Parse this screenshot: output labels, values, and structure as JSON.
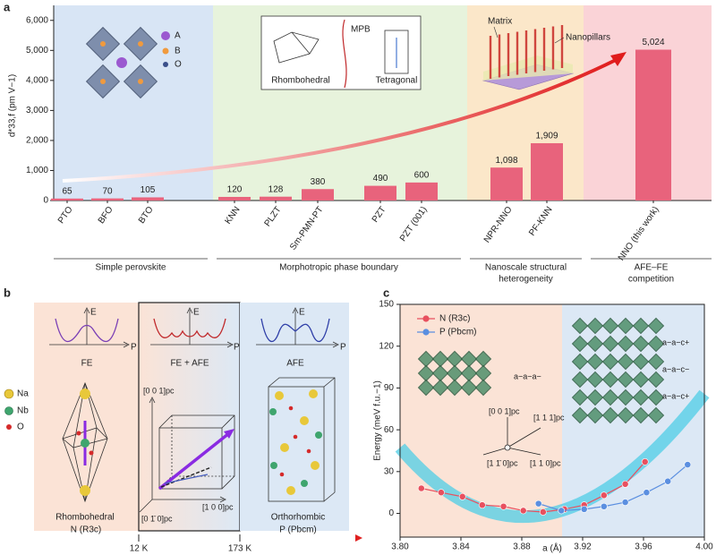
{
  "panel_labels": [
    "a",
    "b",
    "c"
  ],
  "chart_data": [
    {
      "type": "bar",
      "y_label": "d*33,f (pm V−1)",
      "categories": [
        "PTO",
        "BFO",
        "BTO",
        "KNN",
        "PLZT",
        "Sm-PMN-PT",
        "PZT",
        "PZT (001)",
        "NPR-NNO",
        "PF-KNN",
        "NNO (this work)"
      ],
      "values": [
        65,
        70,
        105,
        120,
        128,
        380,
        490,
        600,
        1098,
        1909,
        5024
      ],
      "value_labels": [
        "65",
        "70",
        "105",
        "120",
        "128",
        "380",
        "490",
        "600",
        "1,098",
        "1,909",
        "5,024"
      ],
      "color": "#e8637c",
      "ylim": [
        0,
        6500
      ],
      "yticks": [
        0,
        {
          "value": 1000,
          "label": "1,000"
        },
        {
          "value": 2000,
          "label": "2,000"
        },
        {
          "value": 3000,
          "label": "3,000"
        },
        {
          "value": 4000,
          "label": "4,000"
        },
        {
          "value": 5000,
          "label": "5,000"
        },
        {
          "value": 6000,
          "label": "6,000"
        }
      ],
      "groups": [
        {
          "label": [
            "Simple perovskite"
          ],
          "color": "#d8e5f5"
        },
        {
          "label": [
            "Morphotropic phase boundary"
          ],
          "color": "#e7f3dc"
        },
        {
          "label": [
            "Nanoscale structural",
            "heterogeneity"
          ],
          "color": "#fbe7c9"
        },
        {
          "label": [
            "AFE–FE",
            "competition"
          ],
          "color": "#fad3d7"
        }
      ],
      "annotations": [
        "A",
        "B",
        "O",
        "MPB",
        "Rhombohedral",
        "Tetragonal",
        "Matrix",
        "Nanopillars"
      ]
    },
    {
      "type": "line",
      "x_label": "a (Å)",
      "y_label": "Energy (meV f.u.−1)",
      "xlim": [
        3.8,
        4.0
      ],
      "xticks": [
        {
          "value": 3.8,
          "label": "3.80"
        },
        3.84,
        3.88,
        3.92,
        3.96,
        {
          "value": 4.0,
          "label": "4.00"
        }
      ],
      "ylim": [
        -17,
        150
      ],
      "yticks": [
        0,
        30,
        60,
        90,
        120,
        150
      ],
      "series": [
        {
          "name": "N (R3c)",
          "color": "#e8505f",
          "x": [
            3.814,
            3.827,
            3.841,
            3.854,
            3.868,
            3.881,
            3.894,
            3.908,
            3.921,
            3.934,
            3.948,
            3.961
          ],
          "values": [
            18,
            15,
            12,
            6,
            5,
            2,
            1,
            3,
            6,
            13,
            21,
            37
          ]
        },
        {
          "name": "P (Pbcm)",
          "color": "#5b8fe0",
          "x": [
            3.891,
            3.906,
            3.921,
            3.934,
            3.948,
            3.962,
            3.976,
            3.989
          ],
          "values": [
            7,
            2,
            3,
            5,
            8,
            15,
            23,
            35
          ]
        }
      ],
      "annotations": [
        "a−a−a−",
        "[0 0 1]pc",
        "[1 1 1]pc",
        "[1 1̄ 0]pc",
        "[1 1 0]pc",
        "a−a−c+",
        "a−a−c−",
        "a−a−c+"
      ]
    }
  ],
  "panel_b": {
    "energy_axis": "E",
    "polarization_axis": "P",
    "states": [
      "FE",
      "FE + AFE",
      "AFE"
    ],
    "elements": [
      "Na",
      "Nb",
      "O"
    ],
    "structures": [
      "Rhombohedral",
      "Orthorhombic"
    ],
    "directions": [
      "[0 0 1]pc",
      "[1 0 0]pc",
      "[0 1̄ 0]pc"
    ],
    "phase_bar": {
      "left": "N (R3c)",
      "temperatures": [
        "12 K",
        "173 K"
      ],
      "right": "P (Pbcm)"
    }
  }
}
